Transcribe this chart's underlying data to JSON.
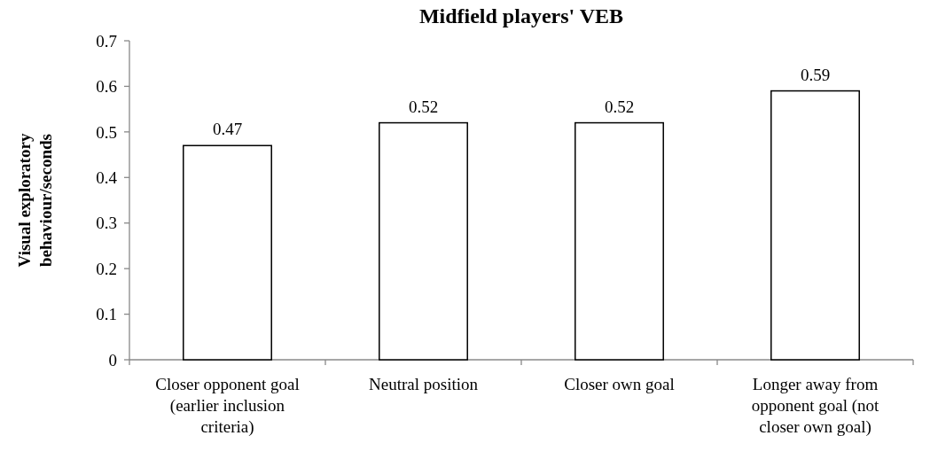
{
  "chart_data": {
    "type": "bar",
    "title": "Midfield players' VEB",
    "ylabel": "Visual exploratory behaviour/seconds",
    "categories": [
      "Closer opponent goal (earlier inclusion criteria)",
      "Neutral position",
      "Closer own goal",
      "Longer away from opponent goal (not closer own goal)"
    ],
    "values": [
      0.47,
      0.52,
      0.52,
      0.59
    ],
    "color": "#ffffff",
    "ylim": [
      0,
      0.7
    ],
    "yticks": [
      0,
      0.1,
      0.2,
      0.3,
      0.4,
      0.5,
      0.6,
      0.7
    ],
    "data_labels": true
  }
}
